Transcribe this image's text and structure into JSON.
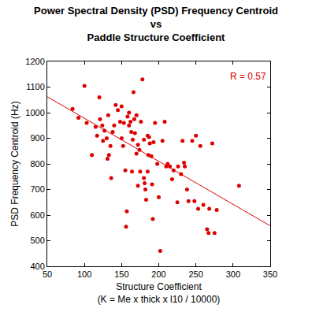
{
  "chart_data": {
    "type": "scatter",
    "title": "Power Spectral Density (PSD) Frequency Centroid\nvs\nPaddle Structure Coefficient",
    "x_label": "Structure Coefficient\n(K = Me x thick x l10 / 10000)",
    "y_label": "PSD Frequency Centroid (Hz)",
    "annotation": "R = 0.57",
    "color": "#dd0000",
    "marker": "circle",
    "grid": false,
    "x": [
      84,
      92,
      100,
      103,
      110,
      115,
      117,
      120,
      121,
      124,
      125,
      127,
      130,
      131,
      132,
      133,
      135,
      136,
      138,
      140,
      142,
      145,
      148,
      150,
      150,
      152,
      153,
      155,
      156,
      157,
      158,
      160,
      160,
      162,
      163,
      164,
      165,
      166,
      167,
      168,
      170,
      170,
      172,
      172,
      174,
      175,
      176,
      178,
      180,
      180,
      181,
      182,
      183,
      185,
      185,
      186,
      187,
      188,
      190,
      191,
      192,
      193,
      195,
      198,
      200,
      202,
      205,
      208,
      210,
      212,
      215,
      218,
      220,
      225,
      226,
      230,
      232,
      234,
      235,
      238,
      240,
      245,
      248,
      250,
      253,
      256,
      260,
      265,
      267,
      268,
      272,
      275,
      278,
      308
    ],
    "values": [
      1015,
      980,
      1105,
      960,
      835,
      945,
      910,
      1060,
      975,
      950,
      890,
      930,
      900,
      820,
      990,
      835,
      870,
      745,
      925,
      950,
      1030,
      1010,
      965,
      1025,
      900,
      870,
      960,
      775,
      555,
      615,
      985,
      1000,
      950,
      965,
      925,
      770,
      895,
      1080,
      975,
      920,
      990,
      840,
      715,
      875,
      855,
      770,
      965,
      1130,
      745,
      895,
      725,
      700,
      660,
      770,
      910,
      835,
      905,
      880,
      830,
      720,
      585,
      885,
      960,
      800,
      670,
      460,
      890,
      965,
      790,
      800,
      790,
      740,
      775,
      650,
      790,
      760,
      890,
      805,
      790,
      700,
      655,
      890,
      655,
      910,
      625,
      870,
      640,
      545,
      530,
      625,
      880,
      530,
      620,
      715
    ],
    "trend_line": {
      "x": [
        50,
        350
      ],
      "values": [
        1062,
        558
      ]
    },
    "xlim": [
      50,
      350
    ],
    "xticks": [
      50,
      100,
      150,
      200,
      250,
      300,
      350
    ],
    "ylim": [
      400,
      1200
    ],
    "yticks": [
      400,
      500,
      600,
      700,
      800,
      900,
      1000,
      1100,
      1200
    ]
  }
}
